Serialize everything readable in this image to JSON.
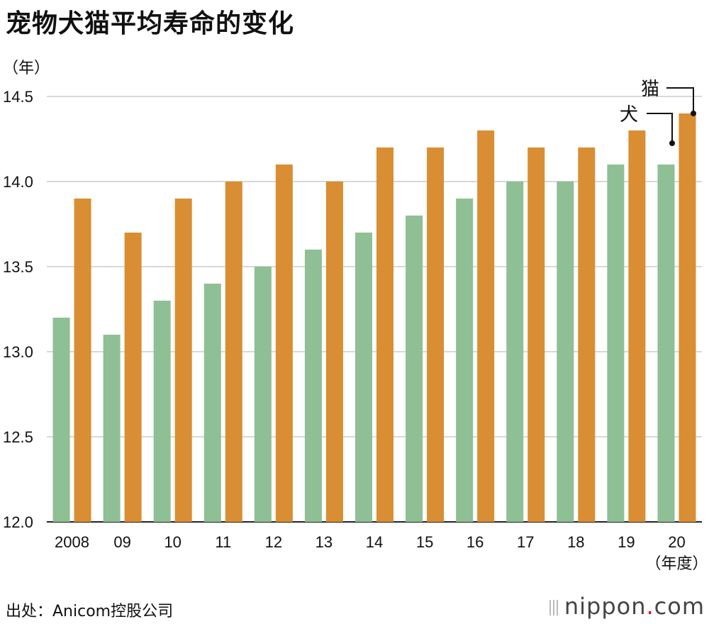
{
  "title": "宠物犬猫平均寿命的变化",
  "source": "出处：Anicom控股公司",
  "brand": {
    "name": "nippon",
    "dot": ".",
    "tld": "com"
  },
  "chart_data": {
    "type": "bar",
    "title": "宠物犬猫平均寿命的变化",
    "ylabel": "（年）",
    "xlabel": "（年度）",
    "categories": [
      "2008",
      "09",
      "10",
      "11",
      "12",
      "13",
      "14",
      "15",
      "16",
      "17",
      "18",
      "19",
      "20"
    ],
    "ylim": [
      12.0,
      14.5
    ],
    "yticks": [
      "12.0",
      "12.5",
      "13.0",
      "13.5",
      "14.0",
      "14.5"
    ],
    "grid": true,
    "series": [
      {
        "name": "犬",
        "color": "#8fbf94",
        "values": [
          13.2,
          13.1,
          13.3,
          13.4,
          13.5,
          13.6,
          13.7,
          13.8,
          13.9,
          14.0,
          14.0,
          14.1,
          14.1
        ]
      },
      {
        "name": "猫",
        "color": "#d98e33",
        "values": [
          13.9,
          13.7,
          13.9,
          14.0,
          14.1,
          14.0,
          14.2,
          14.2,
          14.3,
          14.2,
          14.2,
          14.3,
          14.4
        ]
      }
    ]
  }
}
